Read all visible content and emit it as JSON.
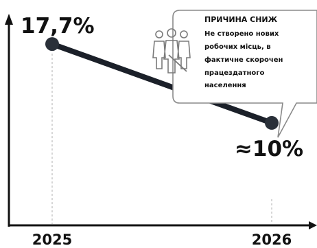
{
  "chart_data": {
    "type": "line",
    "x": [
      "2025",
      "2026"
    ],
    "series": [
      {
        "values": [
          17.7,
          10
        ]
      }
    ],
    "data_labels": [
      "17,7%",
      "≈10%"
    ],
    "xlabel": "",
    "ylabel": "",
    "ylim": [
      0,
      22
    ],
    "grid": false,
    "colors": {
      "line": "#1b2029",
      "marker": "#2a3039",
      "axis": "#111111",
      "guides": "#bcbcbc"
    }
  },
  "callout": {
    "title": "ПРИЧИНА СНИЖ",
    "lines": [
      "Не створено нових",
      "робочих місць, в",
      "фактичне скорочен",
      "працездатного",
      "населення"
    ],
    "icon": "people-group-icon"
  }
}
